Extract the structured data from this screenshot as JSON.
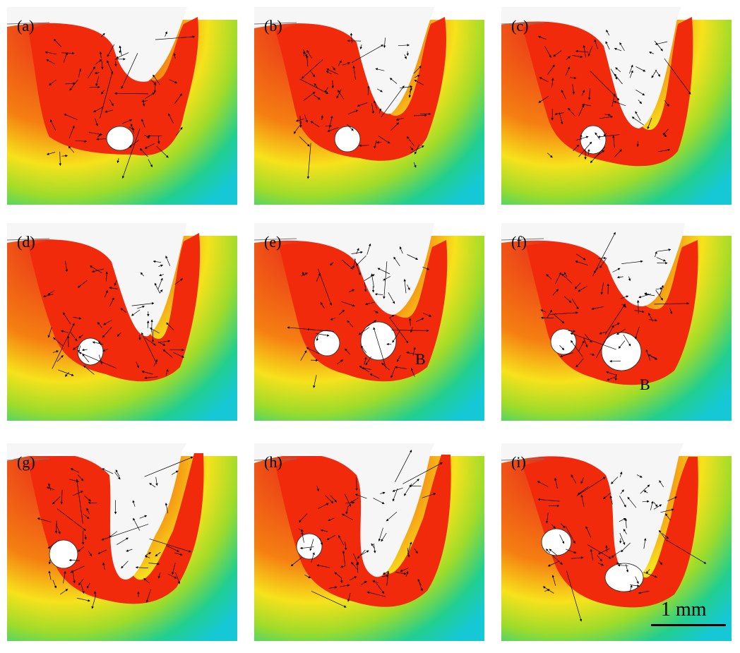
{
  "figure": {
    "panels": [
      {
        "id": "a",
        "label": "(a)"
      },
      {
        "id": "b",
        "label": "(b)"
      },
      {
        "id": "c",
        "label": "(c)"
      },
      {
        "id": "d",
        "label": "(d)"
      },
      {
        "id": "e",
        "label": "(e)",
        "annotation": "B"
      },
      {
        "id": "f",
        "label": "(f)",
        "annotation": "B"
      },
      {
        "id": "g",
        "label": "(g)"
      },
      {
        "id": "h",
        "label": "(h)"
      },
      {
        "id": "i",
        "label": "(i)"
      }
    ],
    "scale_bar": {
      "label": "1 mm"
    },
    "colors": {
      "molten_pool": "#f22a0c",
      "keyhole": "#f6f6f6",
      "gradient": [
        "#e8251a",
        "#f57f12",
        "#f6e21c",
        "#9fdc2a",
        "#22cf8e",
        "#16c8d6"
      ],
      "vectors": "#000000"
    }
  }
}
